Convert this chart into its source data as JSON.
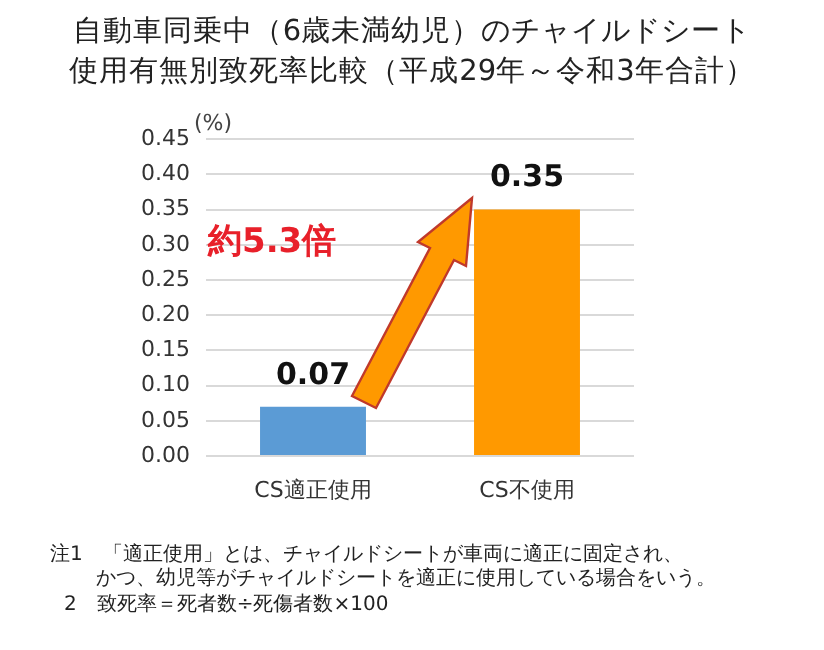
{
  "chart_data": {
    "type": "bar",
    "title": "自動車同乗中（6歳未満幼児）のチャイルドシート",
    "subtitle": "使用有無別致死率比較（平成29年～令和3年合計）",
    "ylabel": "(%)",
    "categories": [
      "CS適正使用",
      "CS不使用"
    ],
    "values": [
      0.07,
      0.35
    ],
    "colors": [
      "#5b9bd5",
      "#ff9900"
    ],
    "ylim": [
      0,
      0.45
    ],
    "yticks": [
      {
        "value": 0,
        "label": "0.00"
      },
      {
        "value": 0.05,
        "label": "0.05"
      },
      {
        "value": 0.1,
        "label": "0.10"
      },
      {
        "value": 0.15,
        "label": "0.15"
      },
      {
        "value": 0.2,
        "label": "0.20"
      },
      {
        "value": 0.25,
        "label": "0.25"
      },
      {
        "value": 0.3,
        "label": "0.30"
      },
      {
        "value": 0.35,
        "label": "0.35"
      },
      {
        "value": 0.4,
        "label": "0.40"
      },
      {
        "value": 0.45,
        "label": "0.45"
      }
    ],
    "grid": "y",
    "legend": false,
    "data_labels": true,
    "annotations": [
      "約5.3倍",
      "注1　「適正使用」とは、チャイルドシートが車両に適正に固定され、",
      "かつ、幼児等がチャイルドシートを適正に使用している場合をいう。",
      "2　致死率＝死者数÷死傷者数×100"
    ]
  }
}
